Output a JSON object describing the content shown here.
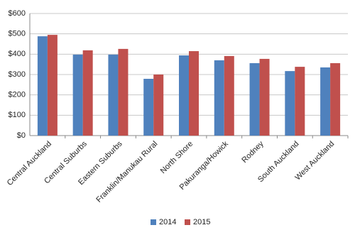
{
  "chart_data": {
    "type": "bar",
    "categories": [
      "Central Auckland",
      "Central Suburbs",
      "Eastern Suburbs",
      "Franklin/Manukau Rural",
      "North Shore",
      "Pakuranga/Howick",
      "Rodney",
      "South Auckland",
      "West Auckland"
    ],
    "series": [
      {
        "name": "2014",
        "color": "#4f81bd",
        "values": [
          488,
          398,
          398,
          279,
          394,
          370,
          356,
          317,
          335
        ]
      },
      {
        "name": "2015",
        "color": "#c0504d",
        "values": [
          495,
          419,
          426,
          300,
          415,
          391,
          377,
          338,
          356
        ]
      }
    ],
    "ylim": [
      0,
      600
    ],
    "yticks": [
      {
        "value": 0,
        "label": "$0"
      },
      {
        "value": 100,
        "label": "$100"
      },
      {
        "value": 200,
        "label": "$200"
      },
      {
        "value": 300,
        "label": "$300"
      },
      {
        "value": 400,
        "label": "$400"
      },
      {
        "value": 500,
        "label": "$500"
      },
      {
        "value": 600,
        "label": "$600"
      }
    ],
    "grid": true,
    "legend": "bottom"
  }
}
